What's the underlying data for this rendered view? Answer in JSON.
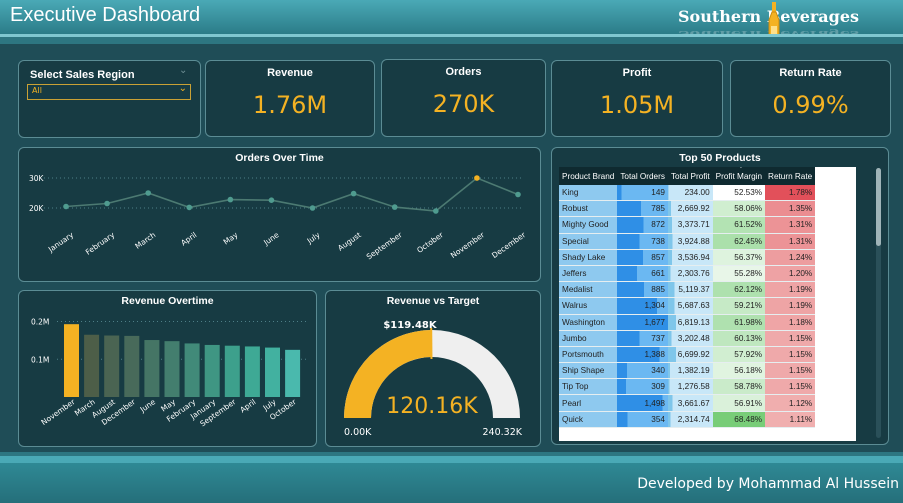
{
  "header": {
    "title": "Executive Dashboard",
    "logo_text": "Southern  Beverages"
  },
  "slicer": {
    "title": "Select Sales Region",
    "value": "All"
  },
  "kpis": [
    {
      "label": "Revenue",
      "value": "1.76M"
    },
    {
      "label": "Orders",
      "value": "270K"
    },
    {
      "label": "Profit",
      "value": "1.05M"
    },
    {
      "label": "Return Rate",
      "value": "0.99%"
    }
  ],
  "orders_chart": {
    "title": "Orders Over Time"
  },
  "revenue_chart": {
    "title": "Revenue Overtime"
  },
  "gauge": {
    "title": "Revenue vs Target",
    "target_label": "$119.48K",
    "value_label": "120.16K",
    "min_label": "0.00K",
    "max_label": "240.32K"
  },
  "products": {
    "title": "Top 50 Products",
    "columns": [
      "Product Brand",
      "Total Orders",
      "Total Profit",
      "Profit Margin",
      "Return Rate"
    ],
    "rows": [
      [
        "King",
        "149",
        "234.00",
        "52.53%",
        "1.78%"
      ],
      [
        "Robust",
        "785",
        "2,669.92",
        "58.06%",
        "1.35%"
      ],
      [
        "Mighty Good",
        "872",
        "3,373.71",
        "61.52%",
        "1.31%"
      ],
      [
        "Special",
        "738",
        "3,924.88",
        "62.45%",
        "1.31%"
      ],
      [
        "Shady Lake",
        "857",
        "3,536.94",
        "56.37%",
        "1.24%"
      ],
      [
        "Jeffers",
        "661",
        "2,303.76",
        "55.28%",
        "1.20%"
      ],
      [
        "Medalist",
        "885",
        "5,119.37",
        "62.12%",
        "1.19%"
      ],
      [
        "Walrus",
        "1,304",
        "5,687.63",
        "59.21%",
        "1.19%"
      ],
      [
        "Washington",
        "1,677",
        "6,819.13",
        "61.98%",
        "1.18%"
      ],
      [
        "Jumbo",
        "737",
        "3,202.48",
        "60.13%",
        "1.15%"
      ],
      [
        "Portsmouth",
        "1,388",
        "6,699.92",
        "57.92%",
        "1.15%"
      ],
      [
        "Ship Shape",
        "340",
        "1,382.19",
        "56.18%",
        "1.15%"
      ],
      [
        "Tip Top",
        "309",
        "1,276.58",
        "58.78%",
        "1.15%"
      ],
      [
        "Pearl",
        "1,498",
        "3,661.67",
        "56.91%",
        "1.12%"
      ],
      [
        "Quick",
        "354",
        "2,314.74",
        "68.48%",
        "1.11%"
      ]
    ]
  },
  "footer": {
    "text": "Developed by Mohammad Al Hussein"
  },
  "chart_data": [
    {
      "type": "line",
      "title": "Orders Over Time",
      "categories": [
        "January",
        "February",
        "March",
        "April",
        "May",
        "June",
        "July",
        "August",
        "September",
        "October",
        "November",
        "December"
      ],
      "values": [
        20500,
        21500,
        25000,
        20200,
        22800,
        22600,
        20000,
        24800,
        20300,
        19000,
        30000,
        24500
      ],
      "ylim": [
        17000,
        31000
      ],
      "yticks": [
        "20K",
        "30K"
      ],
      "highlight": "November",
      "colors": {
        "line": "#4c7a72",
        "marker": "#4f9b8f",
        "highlight": "#f4b223"
      }
    },
    {
      "type": "bar",
      "title": "Revenue Overtime",
      "categories": [
        "November",
        "March",
        "August",
        "December",
        "June",
        "May",
        "February",
        "January",
        "September",
        "April",
        "July",
        "October"
      ],
      "values": [
        0.193,
        0.165,
        0.163,
        0.162,
        0.151,
        0.148,
        0.142,
        0.138,
        0.136,
        0.134,
        0.131,
        0.125
      ],
      "ylim": [
        0,
        0.22
      ],
      "yticks": [
        "0.1M",
        "0.2M"
      ],
      "colors": [
        "#f4b223",
        "#4d5e48",
        "#4a6452",
        "#486a5a",
        "#457565",
        "#437e6e",
        "#418a79",
        "#3f9683",
        "#3da08c",
        "#3ea995",
        "#42b1a0",
        "#4ab9ad"
      ]
    }
  ]
}
